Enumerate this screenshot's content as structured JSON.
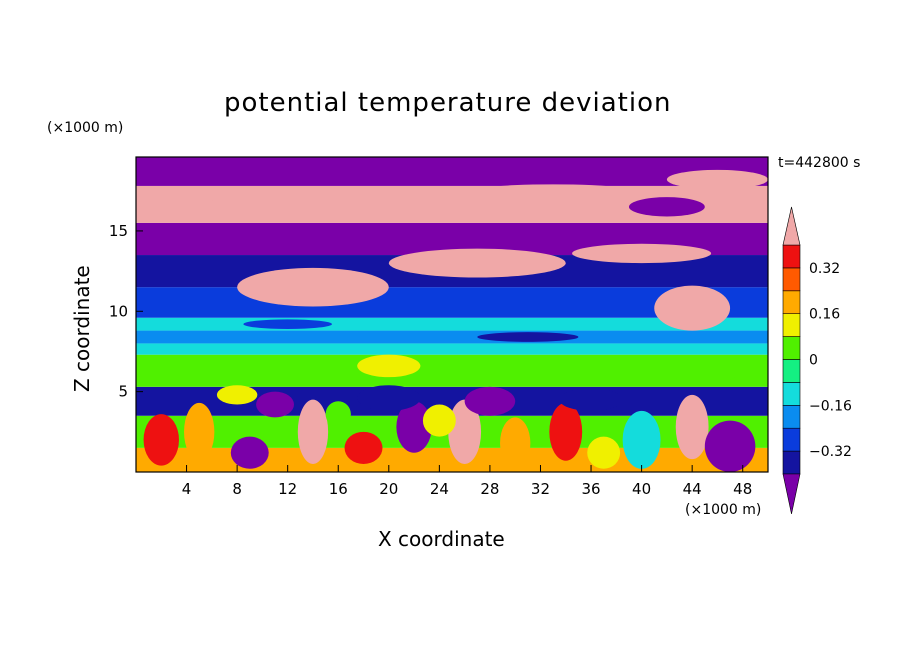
{
  "chart_data": {
    "type": "heatmap",
    "title": "potential temperature deviation",
    "xlabel": "X coordinate",
    "ylabel": "Z coordinate",
    "x_unit": "(×1000 m)",
    "y_unit": "(×1000 m)",
    "time_label": "t=442800 s",
    "xlim": [
      0,
      50
    ],
    "ylim": [
      0,
      19.6
    ],
    "x_ticks": [
      4,
      8,
      12,
      16,
      20,
      24,
      28,
      32,
      36,
      40,
      44,
      48
    ],
    "y_ticks": [
      5,
      10,
      15
    ],
    "colorbar": {
      "levels": [
        -0.4,
        -0.32,
        -0.24,
        -0.16,
        -0.08,
        0,
        0.08,
        0.16,
        0.24,
        0.32,
        0.4
      ],
      "labeled_ticks": [
        0.32,
        0.16,
        0,
        -0.16,
        -0.32
      ],
      "tick_labels": [
        "0.32",
        "0.16",
        "0",
        "−0.16",
        "−0.32"
      ],
      "colors_low_to_high": [
        "#7a00a8",
        "#1414a0",
        "#0a3cdc",
        "#0a8cf0",
        "#14dcdc",
        "#14f082",
        "#50f000",
        "#f0f000",
        "#ffaa00",
        "#ff5a00",
        "#ee1111",
        "#f0a8a8"
      ],
      "extend": "both"
    },
    "bands": [
      {
        "z": [
          0,
          1.5
        ],
        "value": 0.2
      },
      {
        "z": [
          1.5,
          3.5
        ],
        "value": 0.05
      },
      {
        "z": [
          3.5,
          5.3
        ],
        "value": -0.35
      },
      {
        "z": [
          5.3,
          7.3
        ],
        "value": 0.02
      },
      {
        "z": [
          7.3,
          8.0
        ],
        "value": -0.1
      },
      {
        "z": [
          8.0,
          8.8
        ],
        "value": -0.22
      },
      {
        "z": [
          8.8,
          9.6
        ],
        "value": -0.12
      },
      {
        "z": [
          9.6,
          11.5
        ],
        "value": -0.28
      },
      {
        "z": [
          11.5,
          13.5
        ],
        "value": -0.34
      },
      {
        "z": [
          13.5,
          15.5
        ],
        "value": -0.45
      },
      {
        "z": [
          15.5,
          17.8
        ],
        "value": 0.45
      },
      {
        "z": [
          17.8,
          19.6
        ],
        "value": -0.45
      }
    ]
  }
}
